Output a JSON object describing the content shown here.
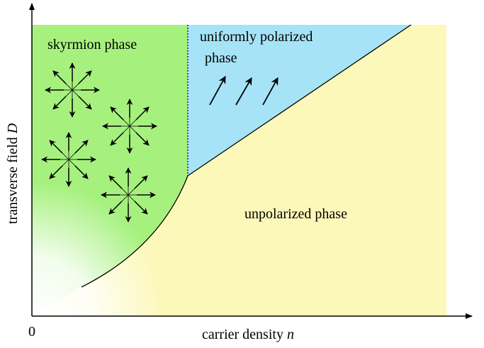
{
  "regions": {
    "skyrmion": "skyrmion phase",
    "polarized": [
      "uniformly polarized",
      "phase"
    ],
    "unpolarized": "unpolarized phase"
  },
  "axes": {
    "x_label": {
      "text": "carrier density",
      "variable": "n"
    },
    "y_label": {
      "text": "transverse field",
      "variable": "D"
    },
    "origin": "0"
  }
}
